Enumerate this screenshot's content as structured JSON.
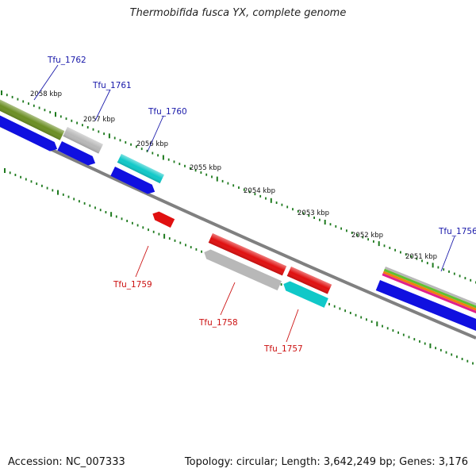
{
  "title": "Thermobifida fusca YX, complete genome",
  "footer": {
    "accession": "Accession: NC_007333",
    "info": "Topology: circular; Length: 3,642,249 bp; Genes: 3,176"
  },
  "kbp_labels": [
    "2058 kbp",
    "2057 kbp",
    "2056 kbp",
    "2055 kbp",
    "2054 kbp",
    "2053 kbp",
    "2052 kbp",
    "2051 kbp"
  ],
  "top_labels": [
    "Tfu_1762",
    "Tfu_1761",
    "Tfu_1760",
    "Tfu_1756"
  ],
  "bottom_labels": [
    "Tfu_1759",
    "Tfu_1758",
    "Tfu_1757"
  ],
  "colors": {
    "backbone": "#808080",
    "tick": "#1e7a1e",
    "label_forward": "#1a1aaa",
    "label_reverse": "#cc1111",
    "blue": "#1010e0",
    "red": "#e01010",
    "cyan": "#10c8c8",
    "gray": "#b8b8b8",
    "olive": "#6b8e23",
    "magenta": "#e0208c",
    "orange": "#f08010",
    "green": "#60c030"
  }
}
